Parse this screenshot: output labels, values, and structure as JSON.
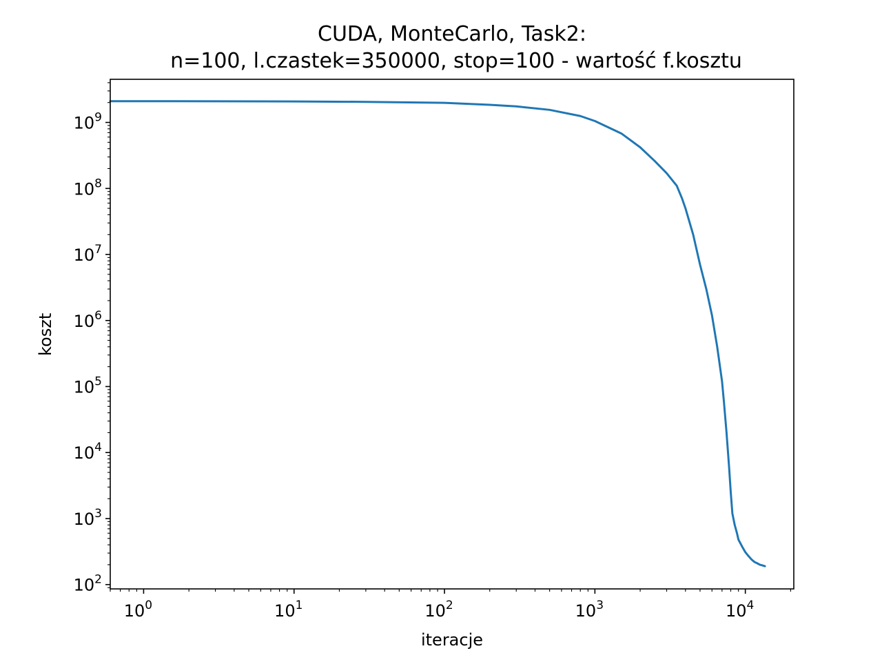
{
  "chart_data": {
    "type": "line",
    "title_line1": "CUDA, MonteCarlo, Task2:",
    "title_line2": "n=100, l.czastek=350000, stop=100 - wartość f.kosztu",
    "xlabel": "iteracje",
    "ylabel": "koszt",
    "xscale": "log",
    "yscale": "log",
    "xlim": [
      0.6,
      21000
    ],
    "ylim": [
      86,
      4500000000
    ],
    "grid": false,
    "legend": "none",
    "x_tick_exponents": [
      "0",
      "1",
      "2",
      "3",
      "4"
    ],
    "y_tick_exponents": [
      "2",
      "3",
      "4",
      "5",
      "6",
      "7",
      "8",
      "9"
    ],
    "tick_base": "10",
    "line_color": "#1f77b4",
    "series": [
      {
        "x": [
          0.6,
          1,
          10,
          30,
          100,
          200,
          300,
          500,
          800,
          1000,
          1500,
          2000,
          2500,
          3000,
          3500,
          3800,
          4000,
          4500,
          5000,
          5500,
          6000,
          6500,
          7000,
          7200,
          7500,
          7800,
          8000,
          8200,
          8500,
          8800,
          9000,
          9500,
          10000,
          10500,
          11000,
          11500,
          12000,
          12500,
          13000,
          13500
        ],
        "y": [
          2100000000,
          2100000000,
          2080000000,
          2050000000,
          1980000000,
          1850000000,
          1750000000,
          1550000000,
          1250000000,
          1050000000,
          680000000,
          420000000,
          260000000,
          170000000,
          110000000,
          70000000,
          50000000,
          20000000,
          7000000,
          3000000,
          1200000,
          400000,
          120000,
          60000,
          20000,
          6000,
          2500,
          1200,
          800,
          600,
          480,
          380,
          310,
          270,
          240,
          220,
          210,
          200,
          195,
          190
        ]
      }
    ]
  }
}
